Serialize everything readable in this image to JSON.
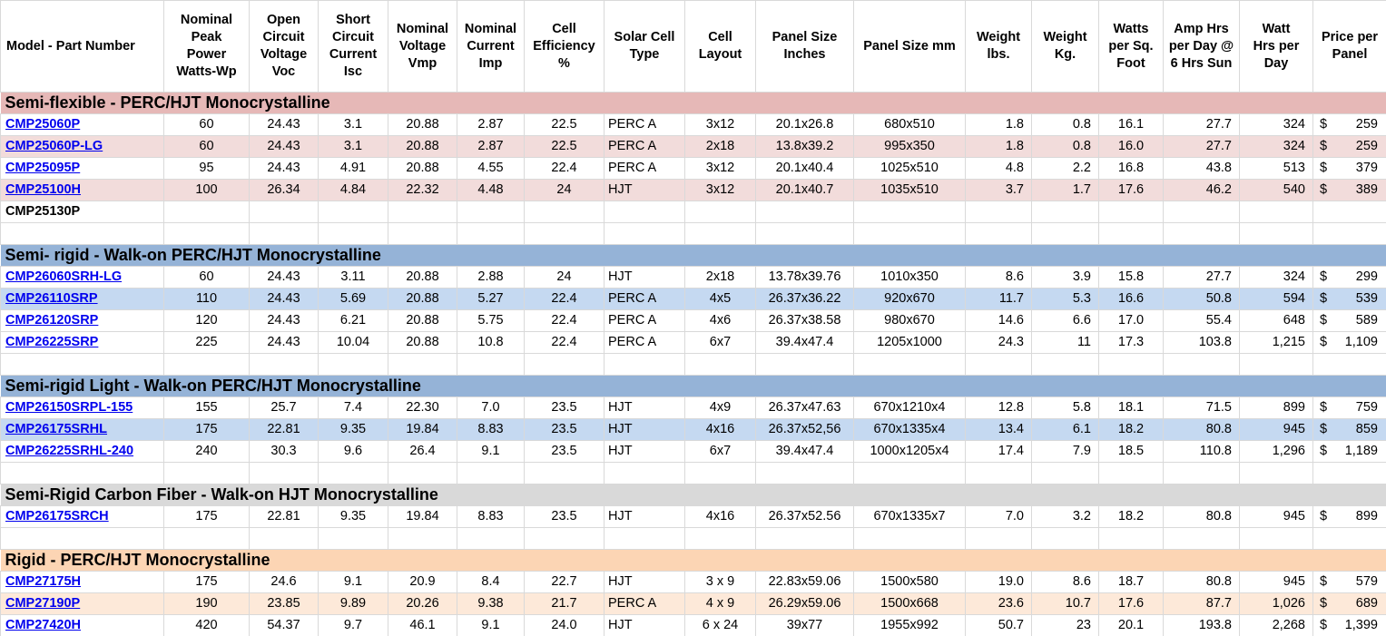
{
  "table": {
    "currency": "$",
    "columns": [
      {
        "key": "model",
        "label": "Model - Part Number"
      },
      {
        "key": "peak_power",
        "label": "Nominal\nPeak\nPower\nWatts-Wp"
      },
      {
        "key": "voc",
        "label": "Open\nCircuit\nVoltage\nVoc"
      },
      {
        "key": "isc",
        "label": "Short\nCircuit\nCurrent\nIsc"
      },
      {
        "key": "vmp",
        "label": "Nominal\nVoltage\nVmp"
      },
      {
        "key": "imp",
        "label": "Nominal\nCurrent\nImp"
      },
      {
        "key": "efficiency",
        "label": "Cell\nEfficiency\n%"
      },
      {
        "key": "cell_type",
        "label": "Solar Cell\nType"
      },
      {
        "key": "layout",
        "label": "Cell\nLayout"
      },
      {
        "key": "size_in",
        "label": "Panel Size\nInches"
      },
      {
        "key": "size_mm",
        "label": "Panel Size mm"
      },
      {
        "key": "weight_lbs",
        "label": "Weight\nlbs."
      },
      {
        "key": "weight_kg",
        "label": "Weight\nKg."
      },
      {
        "key": "watts_sqft",
        "label": "Watts\nper Sq.\nFoot"
      },
      {
        "key": "amp_hrs",
        "label": "Amp Hrs\nper Day @\n6 Hrs Sun"
      },
      {
        "key": "watt_hrs",
        "label": "Watt\nHrs per\nDay"
      },
      {
        "key": "price",
        "label": "Price per\nPanel"
      }
    ],
    "sections": [
      {
        "title": "Semi-flexible - PERC/HJT Monocrystalline",
        "header_bg": "#e6b8b7",
        "alt_bg": "#f2dcdb",
        "rows": [
          {
            "model": "CMP25060P",
            "link": true,
            "highlight": false,
            "values": [
              "60",
              "24.43",
              "3.1",
              "20.88",
              "2.87",
              "22.5",
              "PERC A",
              "3x12",
              "20.1x26.8",
              "680x510",
              "1.8",
              "0.8",
              "16.1",
              "27.7",
              "324",
              "259"
            ]
          },
          {
            "model": "CMP25060P-LG",
            "link": true,
            "highlight": true,
            "values": [
              "60",
              "24.43",
              "3.1",
              "20.88",
              "2.87",
              "22.5",
              "PERC A",
              "2x18",
              "13.8x39.2",
              "995x350",
              "1.8",
              "0.8",
              "16.0",
              "27.7",
              "324",
              "259"
            ]
          },
          {
            "model": "CMP25095P",
            "link": true,
            "highlight": false,
            "values": [
              "95",
              "24.43",
              "4.91",
              "20.88",
              "4.55",
              "22.4",
              "PERC A",
              "3x12",
              "20.1x40.4",
              "1025x510",
              "4.8",
              "2.2",
              "16.8",
              "43.8",
              "513",
              "379"
            ]
          },
          {
            "model": "CMP25100H",
            "link": true,
            "highlight": true,
            "values": [
              "100",
              "26.34",
              "4.84",
              "22.32",
              "4.48",
              "24",
              "HJT",
              "3x12",
              "20.1x40.7",
              "1035x510",
              "3.7",
              "1.7",
              "17.6",
              "46.2",
              "540",
              "389"
            ]
          },
          {
            "model": "CMP25130P",
            "link": false,
            "highlight": false,
            "values": [
              "",
              "",
              "",
              "",
              "",
              "",
              "",
              "",
              "",
              "",
              "",
              "",
              "",
              "",
              "",
              ""
            ]
          },
          {
            "model": "",
            "link": false,
            "highlight": false,
            "values": [
              "",
              "",
              "",
              "",
              "",
              "",
              "",
              "",
              "",
              "",
              "",
              "",
              "",
              "",
              "",
              ""
            ]
          }
        ]
      },
      {
        "title": "Semi- rigid - Walk-on PERC/HJT Monocrystalline",
        "header_bg": "#95b3d7",
        "alt_bg": "#c5d9f1",
        "rows": [
          {
            "model": "CMP26060SRH-LG",
            "link": true,
            "highlight": false,
            "values": [
              "60",
              "24.43",
              "3.11",
              "20.88",
              "2.88",
              "24",
              "HJT",
              "2x18",
              "13.78x39.76",
              "1010x350",
              "8.6",
              "3.9",
              "15.8",
              "27.7",
              "324",
              "299"
            ]
          },
          {
            "model": "CMP26110SRP",
            "link": true,
            "highlight": true,
            "values": [
              "110",
              "24.43",
              "5.69",
              "20.88",
              "5.27",
              "22.4",
              "PERC A",
              "4x5",
              "26.37x36.22",
              "920x670",
              "11.7",
              "5.3",
              "16.6",
              "50.8",
              "594",
              "539"
            ]
          },
          {
            "model": "CMP26120SRP",
            "link": true,
            "highlight": false,
            "values": [
              "120",
              "24.43",
              "6.21",
              "20.88",
              "5.75",
              "22.4",
              "PERC A",
              "4x6",
              "26.37x38.58",
              "980x670",
              "14.6",
              "6.6",
              "17.0",
              "55.4",
              "648",
              "589"
            ]
          },
          {
            "model": "CMP26225SRP",
            "link": true,
            "highlight": false,
            "values": [
              "225",
              "24.43",
              "10.04",
              "20.88",
              "10.8",
              "22.4",
              "PERC A",
              "6x7",
              "39.4x47.4",
              "1205x1000",
              "24.3",
              "11",
              "17.3",
              "103.8",
              "1,215",
              "1,109"
            ]
          },
          {
            "model": "",
            "link": false,
            "highlight": false,
            "values": [
              "",
              "",
              "",
              "",
              "",
              "",
              "",
              "",
              "",
              "",
              "",
              "",
              "",
              "",
              "",
              ""
            ]
          }
        ]
      },
      {
        "title": "Semi-rigid Light - Walk-on PERC/HJT Monocrystalline",
        "header_bg": "#95b3d7",
        "alt_bg": "#c5d9f1",
        "rows": [
          {
            "model": "CMP26150SRPL-155",
            "link": true,
            "highlight": false,
            "values": [
              "155",
              "25.7",
              "7.4",
              "22.30",
              "7.0",
              "23.5",
              "HJT",
              "4x9",
              "26.37x47.63",
              "670x1210x4",
              "12.8",
              "5.8",
              "18.1",
              "71.5",
              "899",
              "759"
            ]
          },
          {
            "model": "CMP26175SRHL",
            "link": true,
            "highlight": true,
            "values": [
              "175",
              "22.81",
              "9.35",
              "19.84",
              "8.83",
              "23.5",
              "HJT",
              "4x16",
              "26.37x52,56",
              "670x1335x4",
              "13.4",
              "6.1",
              "18.2",
              "80.8",
              "945",
              "859"
            ]
          },
          {
            "model": "CMP26225SRHL-240",
            "link": true,
            "highlight": false,
            "values": [
              "240",
              "30.3",
              "9.6",
              "26.4",
              "9.1",
              "23.5",
              "HJT",
              "6x7",
              "39.4x47.4",
              "1000x1205x4",
              "17.4",
              "7.9",
              "18.5",
              "110.8",
              "1,296",
              "1,189"
            ]
          },
          {
            "model": "",
            "link": false,
            "highlight": false,
            "values": [
              "",
              "",
              "",
              "",
              "",
              "",
              "",
              "",
              "",
              "",
              "",
              "",
              "",
              "",
              "",
              ""
            ]
          }
        ]
      },
      {
        "title": "Semi-Rigid Carbon Fiber - Walk-on HJT Monocrystalline",
        "header_bg": "#d9d9d9",
        "alt_bg": "#ffffff",
        "rows": [
          {
            "model": "CMP26175SRCH",
            "link": true,
            "highlight": false,
            "values": [
              "175",
              "22.81",
              "9.35",
              "19.84",
              "8.83",
              "23.5",
              "HJT",
              "4x16",
              "26.37x52.56",
              "670x1335x7",
              "7.0",
              "3.2",
              "18.2",
              "80.8",
              "945",
              "899"
            ]
          },
          {
            "model": "",
            "link": false,
            "highlight": false,
            "values": [
              "",
              "",
              "",
              "",
              "",
              "",
              "",
              "",
              "",
              "",
              "",
              "",
              "",
              "",
              "",
              ""
            ]
          }
        ]
      },
      {
        "title": "Rigid - PERC/HJT Monocrystalline",
        "header_bg": "#fcd5b4",
        "alt_bg": "#fde9d9",
        "rows": [
          {
            "model": "CMP27175H",
            "link": true,
            "highlight": false,
            "values": [
              "175",
              "24.6",
              "9.1",
              "20.9",
              "8.4",
              "22.7",
              "HJT",
              "3 x 9",
              "22.83x59.06",
              "1500x580",
              "19.0",
              "8.6",
              "18.7",
              "80.8",
              "945",
              "579"
            ]
          },
          {
            "model": "CMP27190P",
            "link": true,
            "highlight": true,
            "values": [
              "190",
              "23.85",
              "9.89",
              "20.26",
              "9.38",
              "21.7",
              "PERC A",
              "4 x 9",
              "26.29x59.06",
              "1500x668",
              "23.6",
              "10.7",
              "17.6",
              "87.7",
              "1,026",
              "689"
            ]
          },
          {
            "model": "CMP27420H",
            "link": true,
            "highlight": false,
            "values": [
              "420",
              "54.37",
              "9.7",
              "46.1",
              "9.1",
              "24.0",
              "HJT",
              "6 x 24",
              "39x77",
              "1955x992",
              "50.7",
              "23",
              "20.1",
              "193.8",
              "2,268",
              "1,399"
            ]
          }
        ]
      }
    ]
  }
}
